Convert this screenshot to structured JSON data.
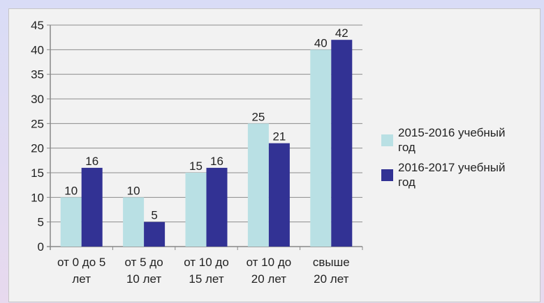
{
  "chart_data": {
    "type": "bar",
    "title": "",
    "xlabel": "",
    "ylabel": "",
    "categories": [
      [
        "от 0 до 5",
        "лет"
      ],
      [
        "от 5 до",
        "10 лет"
      ],
      [
        "от 10 до",
        "15 лет"
      ],
      [
        "от 10 до",
        "20 лет"
      ],
      [
        "свыше",
        "20 лет"
      ]
    ],
    "series": [
      {
        "name": [
          "2015-2016 учебный",
          "год"
        ],
        "values": [
          10,
          10,
          15,
          25,
          40
        ],
        "color": "#b9e0e4"
      },
      {
        "name": [
          "2016-2017 учебный",
          "год"
        ],
        "values": [
          16,
          5,
          16,
          21,
          42
        ],
        "color": "#323294"
      }
    ],
    "ylim": [
      0,
      45
    ],
    "yticks": [
      0,
      5,
      10,
      15,
      20,
      25,
      30,
      35,
      40,
      45
    ],
    "grid": true,
    "legend": "right",
    "colors": {
      "axis": "#888888",
      "grid": "#8c8c8c",
      "background": "#f2f2f2"
    }
  }
}
